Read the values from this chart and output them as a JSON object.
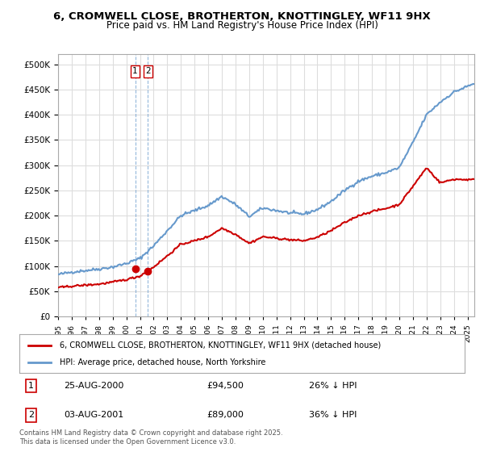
{
  "title": "6, CROMWELL CLOSE, BROTHERTON, KNOTTINGLEY, WF11 9HX",
  "subtitle": "Price paid vs. HM Land Registry's House Price Index (HPI)",
  "legend_line1": "6, CROMWELL CLOSE, BROTHERTON, KNOTTINGLEY, WF11 9HX (detached house)",
  "legend_line2": "HPI: Average price, detached house, North Yorkshire",
  "price_paid": [
    {
      "date": 2000.65,
      "price": 94500,
      "label": "1"
    },
    {
      "date": 2001.58,
      "price": 89000,
      "label": "2"
    }
  ],
  "annotation1": "1    25-AUG-2000         £94,500         26% ↓ HPI",
  "annotation2": "2    03-AUG-2001         £89,000         36% ↓ HPI",
  "copyright": "Contains HM Land Registry data © Crown copyright and database right 2025.\nThis data is licensed under the Open Government Licence v3.0.",
  "line_color_red": "#cc0000",
  "line_color_blue": "#6699cc",
  "bg_color": "#ffffff",
  "grid_color": "#dddddd",
  "ylim": [
    0,
    520000
  ],
  "yticks": [
    0,
    50000,
    100000,
    150000,
    200000,
    250000,
    300000,
    350000,
    400000,
    450000,
    500000
  ],
  "xmin": 1995.0,
  "xmax": 2025.5
}
